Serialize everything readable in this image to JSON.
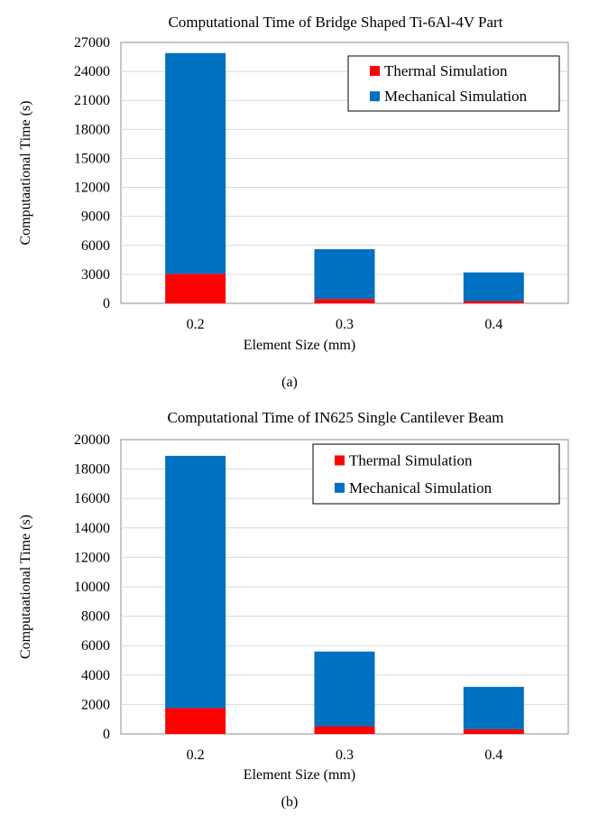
{
  "chart_data": [
    {
      "type": "bar",
      "stacked": true,
      "title": "Computational Time of  Bridge Shaped Ti-6Al-4V Part",
      "xlabel": "Element Size (mm)",
      "ylabel": "Computaational Time (s)",
      "categories": [
        "0.2",
        "0.3",
        "0.4"
      ],
      "ylim": [
        0,
        27000
      ],
      "yticks": [
        0,
        3000,
        6000,
        9000,
        12000,
        15000,
        18000,
        21000,
        24000,
        27000
      ],
      "ytick_labels": [
        "0",
        "3000",
        "6000",
        "9000",
        "12000",
        "15000",
        "18000",
        "21000",
        "24000",
        "27000"
      ],
      "grid": true,
      "legend_position": "top-right",
      "series": [
        {
          "name": "Thermal Simulation",
          "color": "#ff0000",
          "values": [
            3050,
            450,
            230
          ]
        },
        {
          "name": "Mechanical Simulation",
          "color": "#0070c0",
          "values": [
            22850,
            5150,
            2970
          ]
        }
      ],
      "caption": "(a)"
    },
    {
      "type": "bar",
      "stacked": true,
      "title": "Computational Time of IN625 Single Cantilever Beam",
      "xlabel": "Element Size (mm)",
      "ylabel": "Computaational Time (s)",
      "categories": [
        "0.2",
        "0.3",
        "0.4"
      ],
      "ylim": [
        0,
        20000
      ],
      "yticks": [
        0,
        2000,
        4000,
        6000,
        8000,
        10000,
        12000,
        14000,
        16000,
        18000,
        20000
      ],
      "ytick_labels": [
        "0",
        "2000",
        "4000",
        "6000",
        "8000",
        "10000",
        "12000",
        "14000",
        "16000",
        "18000",
        "20000"
      ],
      "grid": true,
      "legend_position": "top-right",
      "series": [
        {
          "name": "Thermal Simulation",
          "color": "#ff0000",
          "values": [
            1750,
            520,
            310
          ]
        },
        {
          "name": "Mechanical Simulation",
          "color": "#0070c0",
          "values": [
            17150,
            5080,
            2890
          ]
        }
      ],
      "caption": "(b)"
    }
  ]
}
